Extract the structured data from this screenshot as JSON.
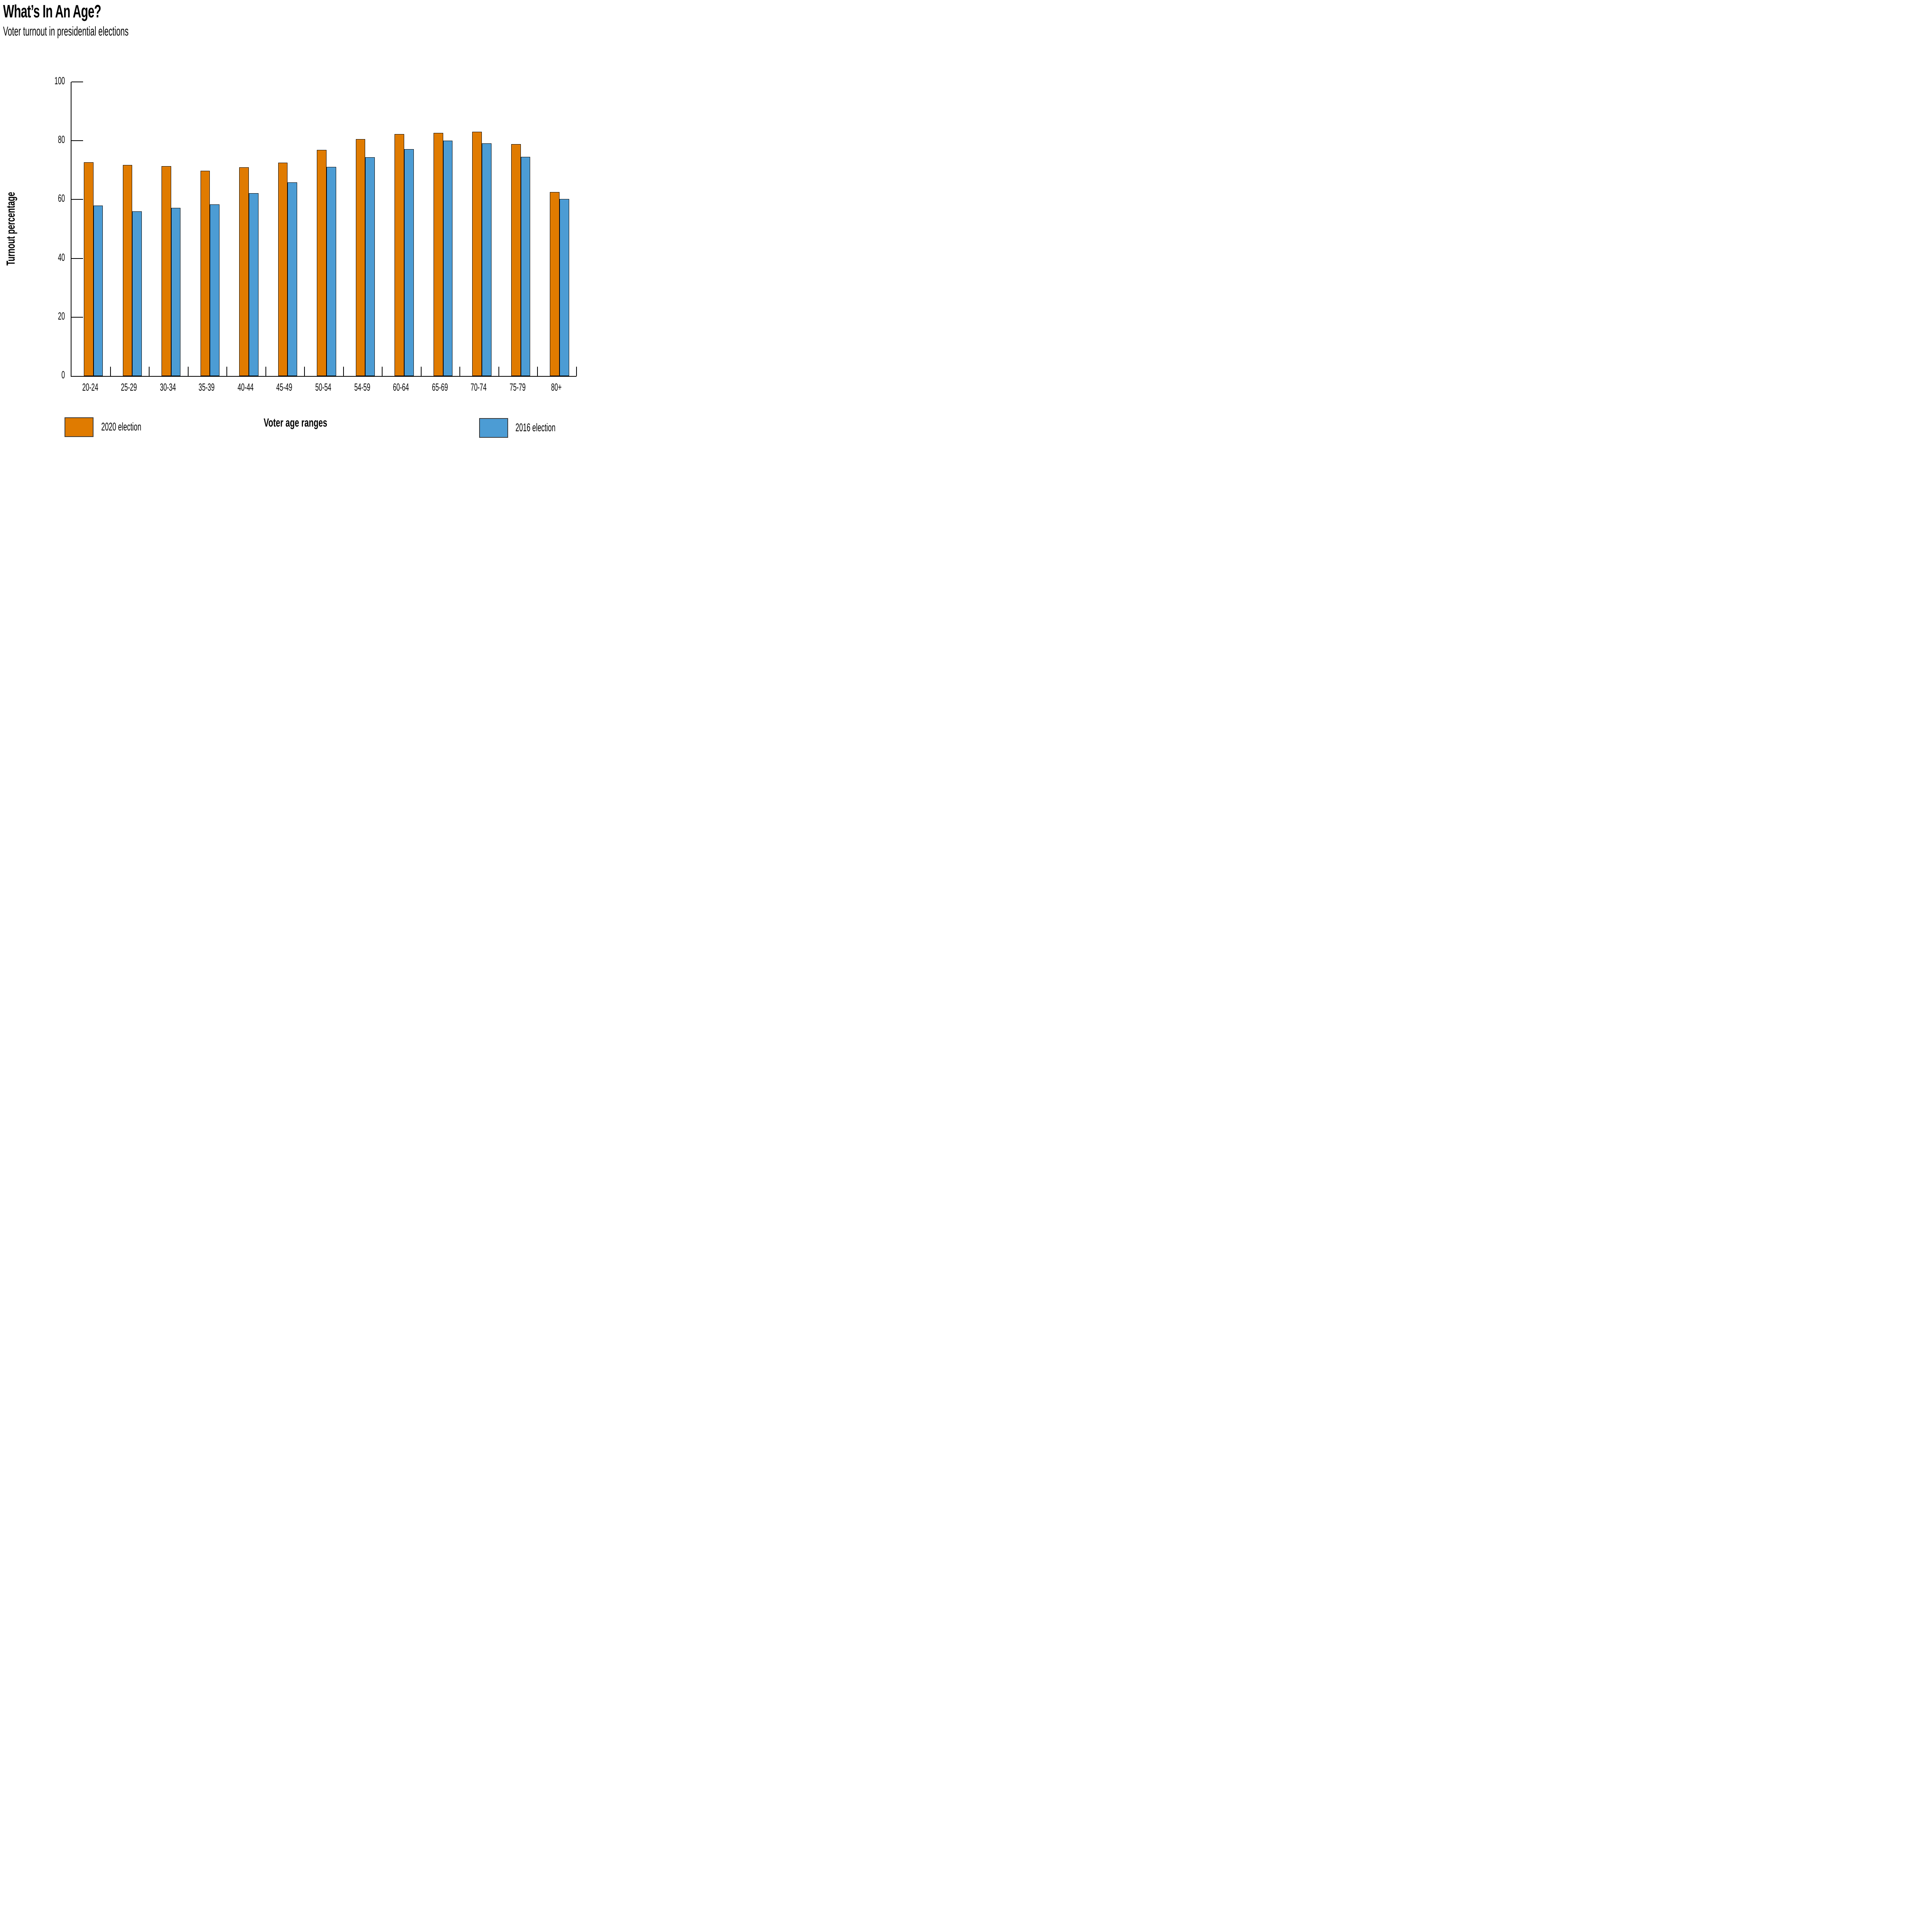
{
  "header": {
    "title": "What’s In An Age?",
    "subtitle": "Voter turnout in presidential elections"
  },
  "axes": {
    "y_title": "Turnout percentage",
    "x_title": "Voter age ranges"
  },
  "legend": {
    "items": [
      {
        "label": "2020 election",
        "color": "#E07B00"
      },
      {
        "label": "2016 election",
        "color": "#4C9CD4"
      }
    ]
  },
  "chart_data": {
    "type": "bar",
    "title": "What’s In An Age?",
    "subtitle": "Voter turnout in presidential elections",
    "xlabel": "Voter age ranges",
    "ylabel": "Turnout percentage",
    "ylim": [
      0,
      100
    ],
    "yticks": [
      0,
      20,
      40,
      60,
      80,
      100
    ],
    "grid": false,
    "tick_direction": "in",
    "legend_position": "bottom",
    "bar_outline_color": "#000000",
    "categories": [
      "20-24",
      "25-29",
      "30-34",
      "35-39",
      "40-44",
      "45-49",
      "50-54",
      "54-59",
      "60-64",
      "65-69",
      "70-74",
      "75-79",
      "80+"
    ],
    "series": [
      {
        "name": "2020 election",
        "color": "#E07B00",
        "values": [
          72.7,
          71.7,
          71.3,
          69.8,
          70.9,
          72.5,
          76.9,
          80.5,
          82.2,
          82.7,
          83.0,
          78.8,
          62.6
        ]
      },
      {
        "name": "2016 election",
        "color": "#4C9CD4",
        "values": [
          58.0,
          56.0,
          57.1,
          58.4,
          62.1,
          65.8,
          71.1,
          74.4,
          77.2,
          80.0,
          79.1,
          74.5,
          60.2
        ]
      }
    ]
  }
}
